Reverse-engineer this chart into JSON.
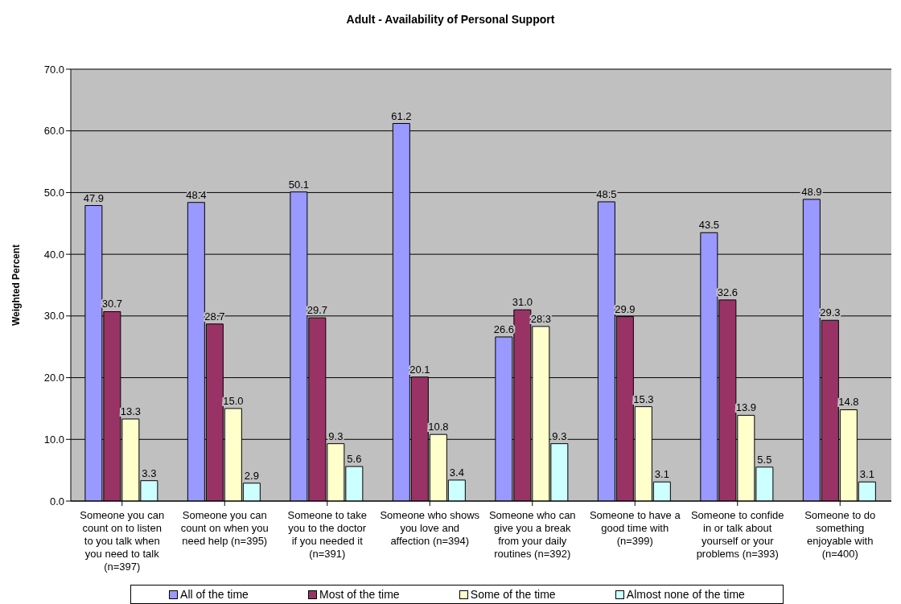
{
  "chart_data": {
    "type": "bar",
    "title": "Adult - Availability of Personal Support",
    "ylabel": "Weighted Percent",
    "categories": [
      "Someone you can count on to listen to you talk when you need to talk (n=397)",
      "Someone you can count on when you need help (n=395)",
      "Someone to take you to the doctor if you needed it (n=391)",
      "Someone who shows you love and affection (n=394)",
      "Someone who can give you a break from your daily routines (n=392)",
      "Someone to have a good time with (n=399)",
      "Someone to confide in or talk about yourself or your problems (n=393)",
      "Someone to do something enjoyable with (n=400)"
    ],
    "series": [
      {
        "name": "All of the time",
        "color": "#9999ff",
        "values": [
          47.9,
          48.4,
          50.1,
          61.2,
          26.6,
          48.5,
          43.5,
          48.9
        ],
        "value_labels": [
          "47.9",
          "48.4",
          "50.1",
          "61.2",
          "26.6",
          "48.5",
          "43.5",
          "48.9"
        ]
      },
      {
        "name": "Most of the time",
        "color": "#993366",
        "values": [
          30.7,
          28.7,
          29.7,
          20.1,
          31,
          29.9,
          32.6,
          29.3
        ],
        "value_labels": [
          "30.7",
          "28.7",
          "29.7",
          "20.1",
          "31.0",
          "29.9",
          "32.6",
          "29.3"
        ]
      },
      {
        "name": "Some of the time",
        "color": "#ffffcc",
        "values": [
          13.3,
          15,
          9.3,
          10.8,
          28.3,
          15.3,
          13.9,
          14.8
        ],
        "value_labels": [
          "13.3",
          "15.0",
          "9.3",
          "10.8",
          "28.3",
          "15.3",
          "13.9",
          "14.8"
        ]
      },
      {
        "name": "Almost none of the time",
        "color": "#ccffff",
        "values": [
          3.3,
          2.9,
          5.6,
          3.4,
          9.3,
          3.1,
          5.5,
          3.1
        ],
        "value_labels": [
          "3.3",
          "2.9",
          "5.6",
          "3.4",
          "9.3",
          "3.1",
          "5.5",
          "3.1"
        ]
      }
    ],
    "ylim": [
      0,
      70
    ],
    "yticks": [
      {
        "value": 0,
        "label": "0.0"
      },
      {
        "value": 10,
        "label": "10.0"
      },
      {
        "value": 20,
        "label": "20.0"
      },
      {
        "value": 30,
        "label": "30.0"
      },
      {
        "value": 40,
        "label": "40.0"
      },
      {
        "value": 50,
        "label": "50.0"
      },
      {
        "value": 60,
        "label": "60.0"
      },
      {
        "value": 70,
        "label": "70.0"
      }
    ],
    "grid": "y",
    "legend": "bottom"
  }
}
